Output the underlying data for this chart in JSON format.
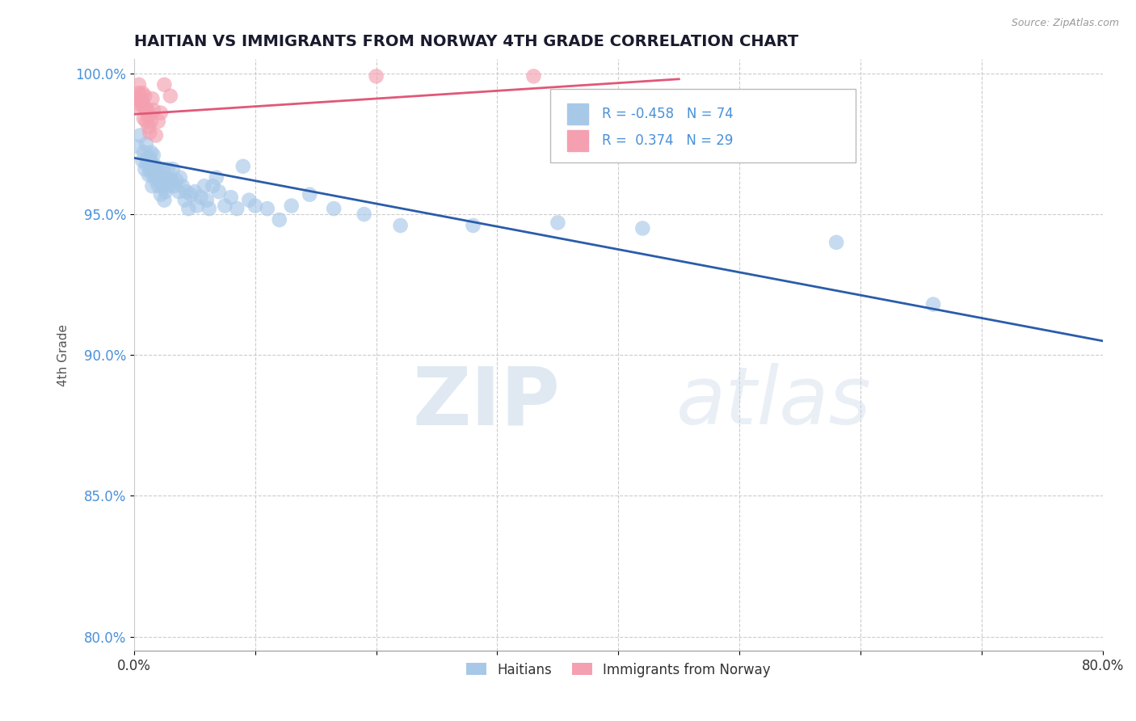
{
  "title": "HAITIAN VS IMMIGRANTS FROM NORWAY 4TH GRADE CORRELATION CHART",
  "source_text": "Source: ZipAtlas.com",
  "xlabel": "",
  "ylabel": "4th Grade",
  "xlim": [
    0.0,
    0.8
  ],
  "ylim": [
    0.795,
    1.005
  ],
  "xticks": [
    0.0,
    0.1,
    0.2,
    0.3,
    0.4,
    0.5,
    0.6,
    0.7,
    0.8
  ],
  "xticklabels": [
    "0.0%",
    "",
    "",
    "",
    "",
    "",
    "",
    "",
    "80.0%"
  ],
  "yticks": [
    0.8,
    0.85,
    0.9,
    0.95,
    1.0
  ],
  "yticklabels": [
    "80.0%",
    "85.0%",
    "90.0%",
    "95.0%",
    "100.0%"
  ],
  "blue_R": -0.458,
  "blue_N": 74,
  "pink_R": 0.374,
  "pink_N": 29,
  "blue_color": "#a8c8e8",
  "blue_line_color": "#2a5caa",
  "pink_color": "#f4a0b0",
  "pink_line_color": "#e05878",
  "legend_label_blue": "Haitians",
  "legend_label_pink": "Immigrants from Norway",
  "watermark_zip": "ZIP",
  "watermark_atlas": "atlas",
  "grid_color": "#cccccc",
  "title_color": "#1a1a2e",
  "axis_label_color": "#555555",
  "blue_scatter_x": [
    0.003,
    0.005,
    0.007,
    0.008,
    0.009,
    0.01,
    0.01,
    0.011,
    0.012,
    0.013,
    0.013,
    0.014,
    0.014,
    0.015,
    0.015,
    0.015,
    0.016,
    0.016,
    0.017,
    0.018,
    0.018,
    0.019,
    0.02,
    0.02,
    0.021,
    0.022,
    0.022,
    0.023,
    0.024,
    0.025,
    0.025,
    0.026,
    0.027,
    0.028,
    0.029,
    0.03,
    0.031,
    0.032,
    0.033,
    0.035,
    0.037,
    0.038,
    0.04,
    0.042,
    0.043,
    0.045,
    0.047,
    0.05,
    0.052,
    0.055,
    0.058,
    0.06,
    0.062,
    0.065,
    0.068,
    0.07,
    0.075,
    0.08,
    0.085,
    0.09,
    0.095,
    0.1,
    0.11,
    0.12,
    0.13,
    0.145,
    0.165,
    0.19,
    0.22,
    0.28,
    0.35,
    0.42,
    0.58,
    0.66
  ],
  "blue_scatter_y": [
    0.974,
    0.978,
    0.969,
    0.972,
    0.966,
    0.968,
    0.975,
    0.97,
    0.964,
    0.97,
    0.966,
    0.972,
    0.967,
    0.968,
    0.964,
    0.96,
    0.971,
    0.966,
    0.964,
    0.967,
    0.962,
    0.963,
    0.966,
    0.96,
    0.962,
    0.963,
    0.957,
    0.96,
    0.966,
    0.96,
    0.955,
    0.958,
    0.963,
    0.966,
    0.96,
    0.962,
    0.962,
    0.966,
    0.96,
    0.962,
    0.958,
    0.963,
    0.96,
    0.955,
    0.958,
    0.952,
    0.957,
    0.958,
    0.953,
    0.956,
    0.96,
    0.955,
    0.952,
    0.96,
    0.963,
    0.958,
    0.953,
    0.956,
    0.952,
    0.967,
    0.955,
    0.953,
    0.952,
    0.948,
    0.953,
    0.957,
    0.952,
    0.95,
    0.946,
    0.946,
    0.947,
    0.945,
    0.94,
    0.918
  ],
  "pink_scatter_x": [
    0.002,
    0.003,
    0.004,
    0.004,
    0.005,
    0.005,
    0.006,
    0.007,
    0.007,
    0.008,
    0.008,
    0.009,
    0.009,
    0.01,
    0.01,
    0.011,
    0.012,
    0.012,
    0.013,
    0.014,
    0.015,
    0.016,
    0.018,
    0.02,
    0.022,
    0.025,
    0.03,
    0.2,
    0.33
  ],
  "pink_scatter_y": [
    0.991,
    0.988,
    0.993,
    0.996,
    0.992,
    0.989,
    0.99,
    0.993,
    0.99,
    0.988,
    0.984,
    0.992,
    0.988,
    0.987,
    0.983,
    0.987,
    0.981,
    0.985,
    0.979,
    0.983,
    0.991,
    0.987,
    0.978,
    0.983,
    0.986,
    0.996,
    0.992,
    0.999,
    0.999
  ]
}
